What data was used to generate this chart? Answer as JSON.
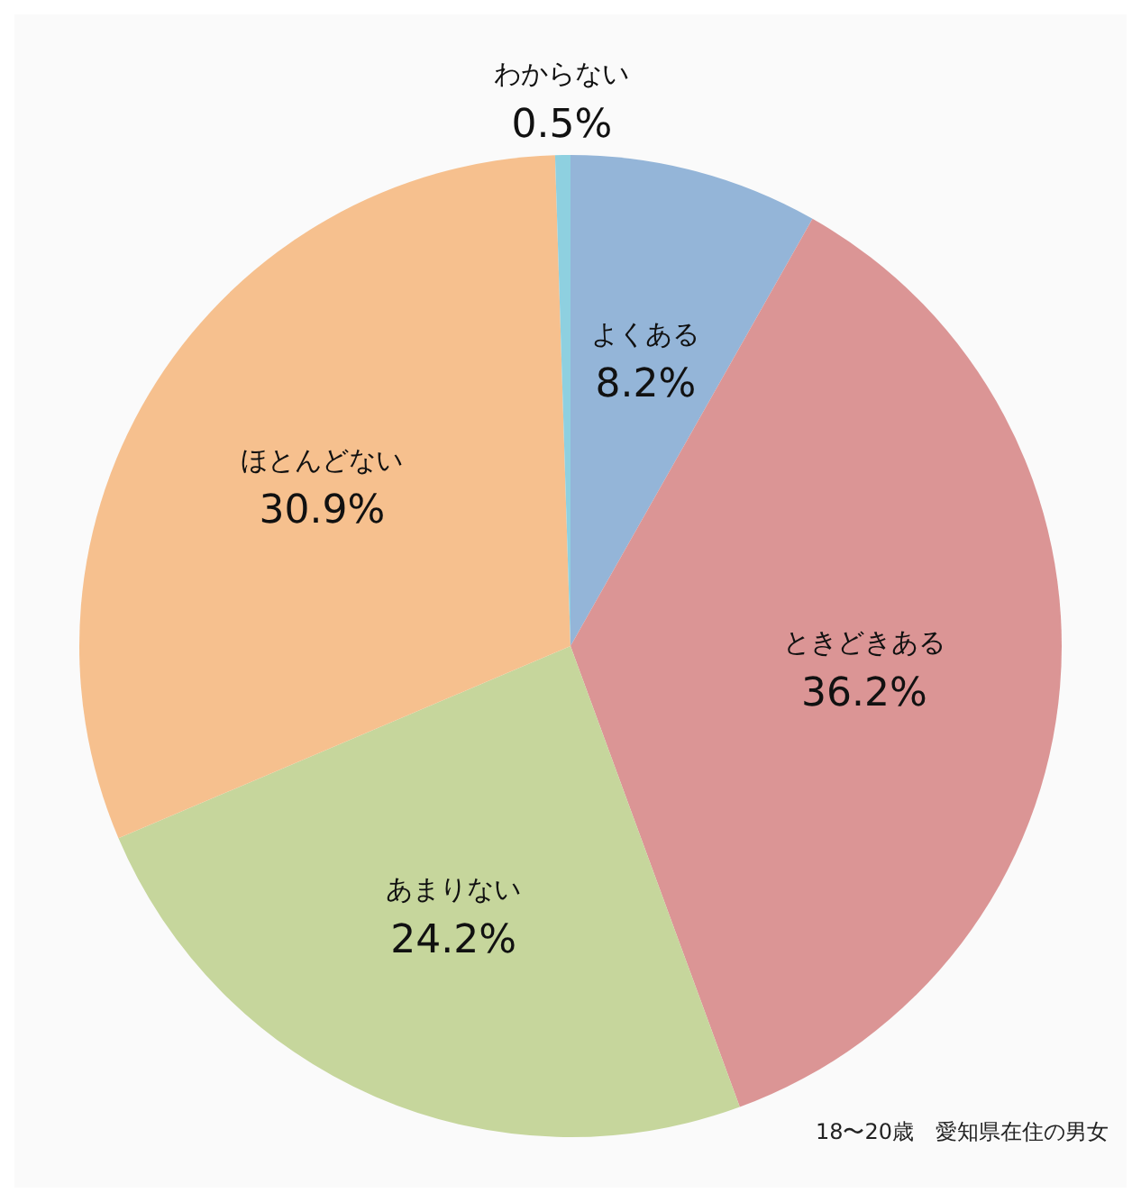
{
  "chart_data": {
    "type": "pie",
    "categories": [
      "よくある",
      "ときどきある",
      "あまりない",
      "ほとんどない",
      "わからない"
    ],
    "values": [
      8.2,
      36.2,
      24.2,
      30.9,
      0.5
    ],
    "colors": [
      "#94b5d8",
      "#db9595",
      "#c6d69c",
      "#f6c08e",
      "#8ed0e0"
    ],
    "value_labels": [
      "8.2%",
      "36.2%",
      "24.2%",
      "30.9%",
      "0.5%"
    ],
    "legend": false,
    "annotations": [
      "18〜20歳　愛知県在住の男女"
    ]
  }
}
